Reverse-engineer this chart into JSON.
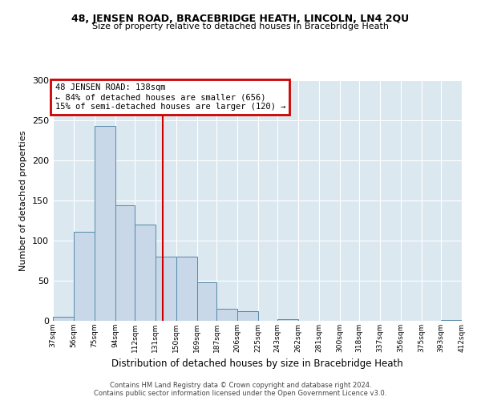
{
  "title": "48, JENSEN ROAD, BRACEBRIDGE HEATH, LINCOLN, LN4 2QU",
  "subtitle": "Size of property relative to detached houses in Bracebridge Heath",
  "xlabel": "Distribution of detached houses by size in Bracebridge Heath",
  "ylabel": "Number of detached properties",
  "bar_edges": [
    37,
    56,
    75,
    94,
    112,
    131,
    150,
    169,
    187,
    206,
    225,
    243,
    262,
    281,
    300,
    318,
    337,
    356,
    375,
    393,
    412
  ],
  "bar_heights": [
    5,
    111,
    243,
    144,
    120,
    80,
    80,
    48,
    15,
    12,
    0,
    2,
    0,
    0,
    0,
    0,
    0,
    0,
    0,
    1
  ],
  "tick_labels": [
    "37sqm",
    "56sqm",
    "75sqm",
    "94sqm",
    "112sqm",
    "131sqm",
    "150sqm",
    "169sqm",
    "187sqm",
    "206sqm",
    "225sqm",
    "243sqm",
    "262sqm",
    "281sqm",
    "300sqm",
    "318sqm",
    "337sqm",
    "356sqm",
    "375sqm",
    "393sqm",
    "412sqm"
  ],
  "bar_color": "#c8d8e8",
  "bar_edge_color": "#5588aa",
  "ref_line_x": 138,
  "ref_line_color": "#cc0000",
  "annotation_box_text": "48 JENSEN ROAD: 138sqm\n← 84% of detached houses are smaller (656)\n15% of semi-detached houses are larger (120) →",
  "annotation_box_color": "#cc0000",
  "ylim": [
    0,
    300
  ],
  "yticks": [
    0,
    50,
    100,
    150,
    200,
    250,
    300
  ],
  "grid_color": "#c8d8e8",
  "bg_color": "#dce8f0",
  "footer_line1": "Contains HM Land Registry data © Crown copyright and database right 2024.",
  "footer_line2": "Contains public sector information licensed under the Open Government Licence v3.0."
}
